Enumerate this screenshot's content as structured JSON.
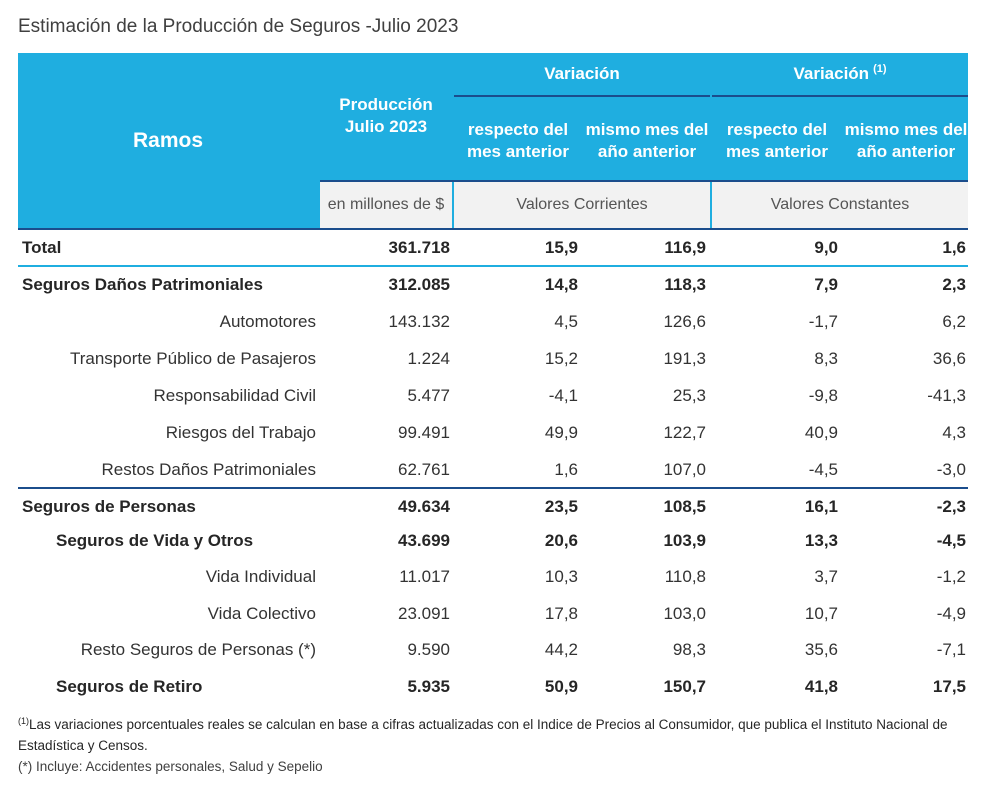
{
  "title": "Estimación de la Producción de Seguros -Julio 2023",
  "header": {
    "ramos": "Ramos",
    "produccion": "Producción Julio 2023",
    "unit": "en millones de $",
    "variacion_corrientes": "Variación",
    "variacion_constantes": "Variación",
    "variacion_constantes_note": "(1)",
    "respecto_mes_anterior": "respecto del mes anterior",
    "mismo_mes_anio_anterior": "mismo mes del año anterior",
    "valores_corrientes": "Valores Corrientes",
    "valores_constantes": "Valores Constantes"
  },
  "rows": [
    {
      "label": "Total",
      "produccion": "361.718",
      "v1": "15,9",
      "v2": "116,9",
      "v3": "9,0",
      "v4": "1,6"
    },
    {
      "label": "Seguros Daños Patrimoniales",
      "produccion": "312.085",
      "v1": "14,8",
      "v2": "118,3",
      "v3": "7,9",
      "v4": "2,3"
    },
    {
      "label": "Automotores",
      "produccion": "143.132",
      "v1": "4,5",
      "v2": "126,6",
      "v3": "-1,7",
      "v4": "6,2"
    },
    {
      "label": "Transporte Público de Pasajeros",
      "produccion": "1.224",
      "v1": "15,2",
      "v2": "191,3",
      "v3": "8,3",
      "v4": "36,6"
    },
    {
      "label": "Responsabilidad Civil",
      "produccion": "5.477",
      "v1": "-4,1",
      "v2": "25,3",
      "v3": "-9,8",
      "v4": "-41,3"
    },
    {
      "label": "Riesgos del Trabajo",
      "produccion": "99.491",
      "v1": "49,9",
      "v2": "122,7",
      "v3": "40,9",
      "v4": "4,3"
    },
    {
      "label": "Restos Daños Patrimoniales",
      "produccion": "62.761",
      "v1": "1,6",
      "v2": "107,0",
      "v3": "-4,5",
      "v4": "-3,0"
    },
    {
      "label": "Seguros de Personas",
      "produccion": "49.634",
      "v1": "23,5",
      "v2": "108,5",
      "v3": "16,1",
      "v4": "-2,3"
    },
    {
      "label": "Seguros de Vida y Otros",
      "produccion": "43.699",
      "v1": "20,6",
      "v2": "103,9",
      "v3": "13,3",
      "v4": "-4,5"
    },
    {
      "label": "Vida Individual",
      "produccion": "11.017",
      "v1": "10,3",
      "v2": "110,8",
      "v3": "3,7",
      "v4": "-1,2"
    },
    {
      "label": "Vida Colectivo",
      "produccion": "23.091",
      "v1": "17,8",
      "v2": "103,0",
      "v3": "10,7",
      "v4": "-4,9"
    },
    {
      "label": "Resto Seguros de Personas (*)",
      "produccion": "9.590",
      "v1": "44,2",
      "v2": "98,3",
      "v3": "35,6",
      "v4": "-7,1"
    },
    {
      "label": "Seguros de Retiro",
      "produccion": "5.935",
      "v1": "50,9",
      "v2": "150,7",
      "v3": "41,8",
      "v4": "17,5"
    }
  ],
  "footnotes": {
    "note1_mark": "(1)",
    "note1": "Las variaciones porcentuales reales se calculan en base a cifras actualizadas con  el Indice de Precios al Consumidor, que publica el Instituto Nacional de Estadística y  Censos.",
    "note2": "(*) Incluye: Accidentes personales, Salud y Sepelio"
  },
  "colors": {
    "header_bg": "#1faee0",
    "header_text": "#ffffff",
    "rule_dark": "#1b4d8c",
    "rule_light": "#1faee0",
    "subheader_bg": "#f2f2f2"
  }
}
